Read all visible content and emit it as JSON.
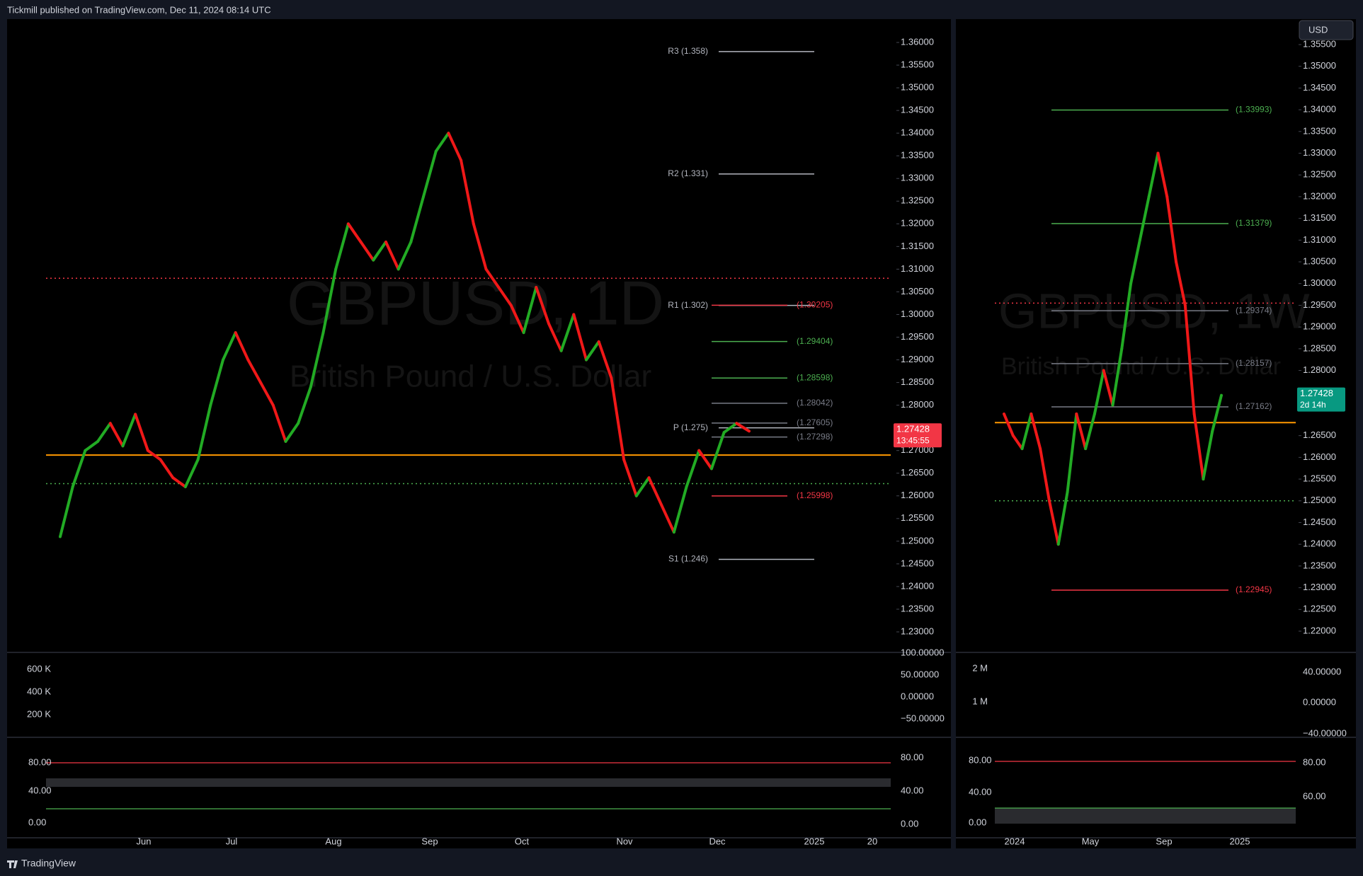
{
  "header": {
    "title": "Tickmill published on TradingView.com, Dec 11, 2024 08:14 UTC"
  },
  "footer": {
    "brand": "TradingView"
  },
  "currency_button": "USD",
  "charts": [
    {
      "watermark_symbol": "GBPUSD, 1D",
      "watermark_name": "British Pound / U.S. Dollar",
      "ylim": [
        1.23,
        1.36
      ],
      "yticks": [
        {
          "value": 1.36,
          "label": "1.36000"
        },
        {
          "value": 1.355,
          "label": "1.35500"
        },
        {
          "value": 1.35,
          "label": "1.35000"
        },
        {
          "value": 1.345,
          "label": "1.34500"
        },
        {
          "value": 1.34,
          "label": "1.34000"
        },
        {
          "value": 1.335,
          "label": "1.33500"
        },
        {
          "value": 1.33,
          "label": "1.33000"
        },
        {
          "value": 1.325,
          "label": "1.32500"
        },
        {
          "value": 1.32,
          "label": "1.32000"
        },
        {
          "value": 1.315,
          "label": "1.31500"
        },
        {
          "value": 1.31,
          "label": "1.31000"
        },
        {
          "value": 1.305,
          "label": "1.30500"
        },
        {
          "value": 1.3,
          "label": "1.30000"
        },
        {
          "value": 1.295,
          "label": "1.29500"
        },
        {
          "value": 1.29,
          "label": "1.29000"
        },
        {
          "value": 1.285,
          "label": "1.28500"
        },
        {
          "value": 1.28,
          "label": "1.28000"
        },
        {
          "value": 1.275,
          "label": "1.27500"
        },
        {
          "value": 1.27,
          "label": "1.27000"
        },
        {
          "value": 1.265,
          "label": "1.26500"
        },
        {
          "value": 1.26,
          "label": "1.26000"
        },
        {
          "value": 1.255,
          "label": "1.25500"
        },
        {
          "value": 1.25,
          "label": "1.25000"
        },
        {
          "value": 1.245,
          "label": "1.24500"
        },
        {
          "value": 1.24,
          "label": "1.24000"
        },
        {
          "value": 1.235,
          "label": "1.23500"
        },
        {
          "value": 1.23,
          "label": "1.23000"
        }
      ],
      "levels": [
        {
          "label": "R3 (1.358)",
          "value": 1.358,
          "color": "#b2b5be"
        },
        {
          "label": "R2 (1.331)",
          "value": 1.331,
          "color": "#b2b5be"
        },
        {
          "label": "R1 (1.302)",
          "value": 1.302,
          "color": "#b2b5be"
        },
        {
          "label": "(1.30205)",
          "value": 1.30205,
          "color": "#f23645"
        },
        {
          "label": "(1.29404)",
          "value": 1.29404,
          "color": "#4caf50"
        },
        {
          "label": "(1.28598)",
          "value": 1.28598,
          "color": "#4caf50"
        },
        {
          "label": "(1.28042)",
          "value": 1.28042,
          "color": "#787b86"
        },
        {
          "label": "P (1.275)",
          "value": 1.275,
          "color": "#b2b5be"
        },
        {
          "label": "(1.27605)",
          "value": 1.27605,
          "color": "#787b86"
        },
        {
          "label": "(1.27298)",
          "value": 1.27298,
          "color": "#787b86"
        },
        {
          "label": "(1.25998)",
          "value": 1.25998,
          "color": "#f23645"
        },
        {
          "label": "S1 (1.246)",
          "value": 1.246,
          "color": "#b2b5be"
        }
      ],
      "lines": [
        {
          "value": 1.269,
          "color": "#ff9800",
          "style": "solid"
        },
        {
          "value": 1.308,
          "color": "#f23645",
          "style": "dotted"
        },
        {
          "value": 1.2627,
          "color": "#4caf50",
          "style": "dotted"
        }
      ],
      "closes": [
        1.251,
        1.262,
        1.27,
        1.272,
        1.276,
        1.271,
        1.278,
        1.27,
        1.268,
        1.264,
        1.262,
        1.268,
        1.28,
        1.29,
        1.296,
        1.29,
        1.285,
        1.28,
        1.272,
        1.276,
        1.284,
        1.296,
        1.31,
        1.32,
        1.316,
        1.312,
        1.316,
        1.31,
        1.316,
        1.326,
        1.336,
        1.34,
        1.334,
        1.32,
        1.31,
        1.306,
        1.302,
        1.296,
        1.306,
        1.298,
        1.292,
        1.3,
        1.29,
        1.294,
        1.286,
        1.268,
        1.26,
        1.264,
        1.258,
        1.252,
        1.262,
        1.27,
        1.266,
        1.274,
        1.276,
        1.27428
      ],
      "price_tag": {
        "value": 1.27428,
        "countdown": "13:45:55",
        "color": "#f23645"
      },
      "time_labels": [
        "Jun",
        "Jul",
        "Aug",
        "Sep",
        "Oct",
        "Nov",
        "Dec",
        "2025",
        "20"
      ],
      "volume_labels": [
        "600 K",
        "400 K",
        "200 K"
      ],
      "volume_axis": [
        "100.00000",
        "50.00000",
        "0.00000",
        "−50.00000"
      ],
      "stoch_labels": [
        "80.00",
        "40.00",
        "0.00"
      ],
      "stoch_axis": [
        "80.00",
        "40.00",
        "0.00"
      ]
    },
    {
      "watermark_symbol": "GBPUSD, 1W",
      "watermark_name": "British Pound / U.S. Dollar",
      "ylim": [
        1.22,
        1.355
      ],
      "yticks": [
        {
          "value": 1.355,
          "label": "1.35500"
        },
        {
          "value": 1.35,
          "label": "1.35000"
        },
        {
          "value": 1.345,
          "label": "1.34500"
        },
        {
          "value": 1.34,
          "label": "1.34000"
        },
        {
          "value": 1.335,
          "label": "1.33500"
        },
        {
          "value": 1.33,
          "label": "1.33000"
        },
        {
          "value": 1.325,
          "label": "1.32500"
        },
        {
          "value": 1.32,
          "label": "1.32000"
        },
        {
          "value": 1.315,
          "label": "1.31500"
        },
        {
          "value": 1.31,
          "label": "1.31000"
        },
        {
          "value": 1.305,
          "label": "1.30500"
        },
        {
          "value": 1.3,
          "label": "1.30000"
        },
        {
          "value": 1.295,
          "label": "1.29500"
        },
        {
          "value": 1.29,
          "label": "1.29000"
        },
        {
          "value": 1.285,
          "label": "1.28500"
        },
        {
          "value": 1.28,
          "label": "1.28000"
        },
        {
          "value": 1.265,
          "label": "1.26500"
        },
        {
          "value": 1.26,
          "label": "1.26000"
        },
        {
          "value": 1.255,
          "label": "1.25500"
        },
        {
          "value": 1.25,
          "label": "1.25000"
        },
        {
          "value": 1.245,
          "label": "1.24500"
        },
        {
          "value": 1.24,
          "label": "1.24000"
        },
        {
          "value": 1.235,
          "label": "1.23500"
        },
        {
          "value": 1.23,
          "label": "1.23000"
        },
        {
          "value": 1.225,
          "label": "1.22500"
        },
        {
          "value": 1.22,
          "label": "1.22000"
        }
      ],
      "levels": [
        {
          "label": "(1.33993)",
          "value": 1.33993,
          "color": "#4caf50"
        },
        {
          "label": "(1.31379)",
          "value": 1.31379,
          "color": "#4caf50"
        },
        {
          "label": "(1.29374)",
          "value": 1.29374,
          "color": "#787b86"
        },
        {
          "label": "(1.28157)",
          "value": 1.28157,
          "color": "#787b86"
        },
        {
          "label": "(1.27162)",
          "value": 1.27162,
          "color": "#787b86"
        },
        {
          "label": "(1.22945)",
          "value": 1.22945,
          "color": "#f23645"
        }
      ],
      "lines": [
        {
          "value": 1.268,
          "color": "#ff9800",
          "style": "solid"
        },
        {
          "value": 1.25,
          "color": "#4caf50",
          "style": "dotted"
        },
        {
          "value": 1.2955,
          "color": "#f23645",
          "style": "dotted"
        }
      ],
      "closes": [
        1.27,
        1.265,
        1.262,
        1.27,
        1.262,
        1.25,
        1.24,
        1.252,
        1.27,
        1.262,
        1.27,
        1.28,
        1.272,
        1.285,
        1.3,
        1.31,
        1.32,
        1.33,
        1.32,
        1.305,
        1.295,
        1.27,
        1.255,
        1.266,
        1.27428
      ],
      "price_tag": {
        "value": 1.27428,
        "countdown": "2d 14h",
        "color": "#089981"
      },
      "time_labels": [
        "2024",
        "May",
        "Sep",
        "2025"
      ],
      "volume_labels": [
        "2 M",
        "1 M"
      ],
      "volume_axis": [
        "40.00000",
        "0.00000",
        "−40.00000"
      ],
      "stoch_labels": [
        "80.00",
        "40.00",
        "0.00"
      ],
      "stoch_axis": [
        "80.00",
        "60.00"
      ]
    }
  ]
}
